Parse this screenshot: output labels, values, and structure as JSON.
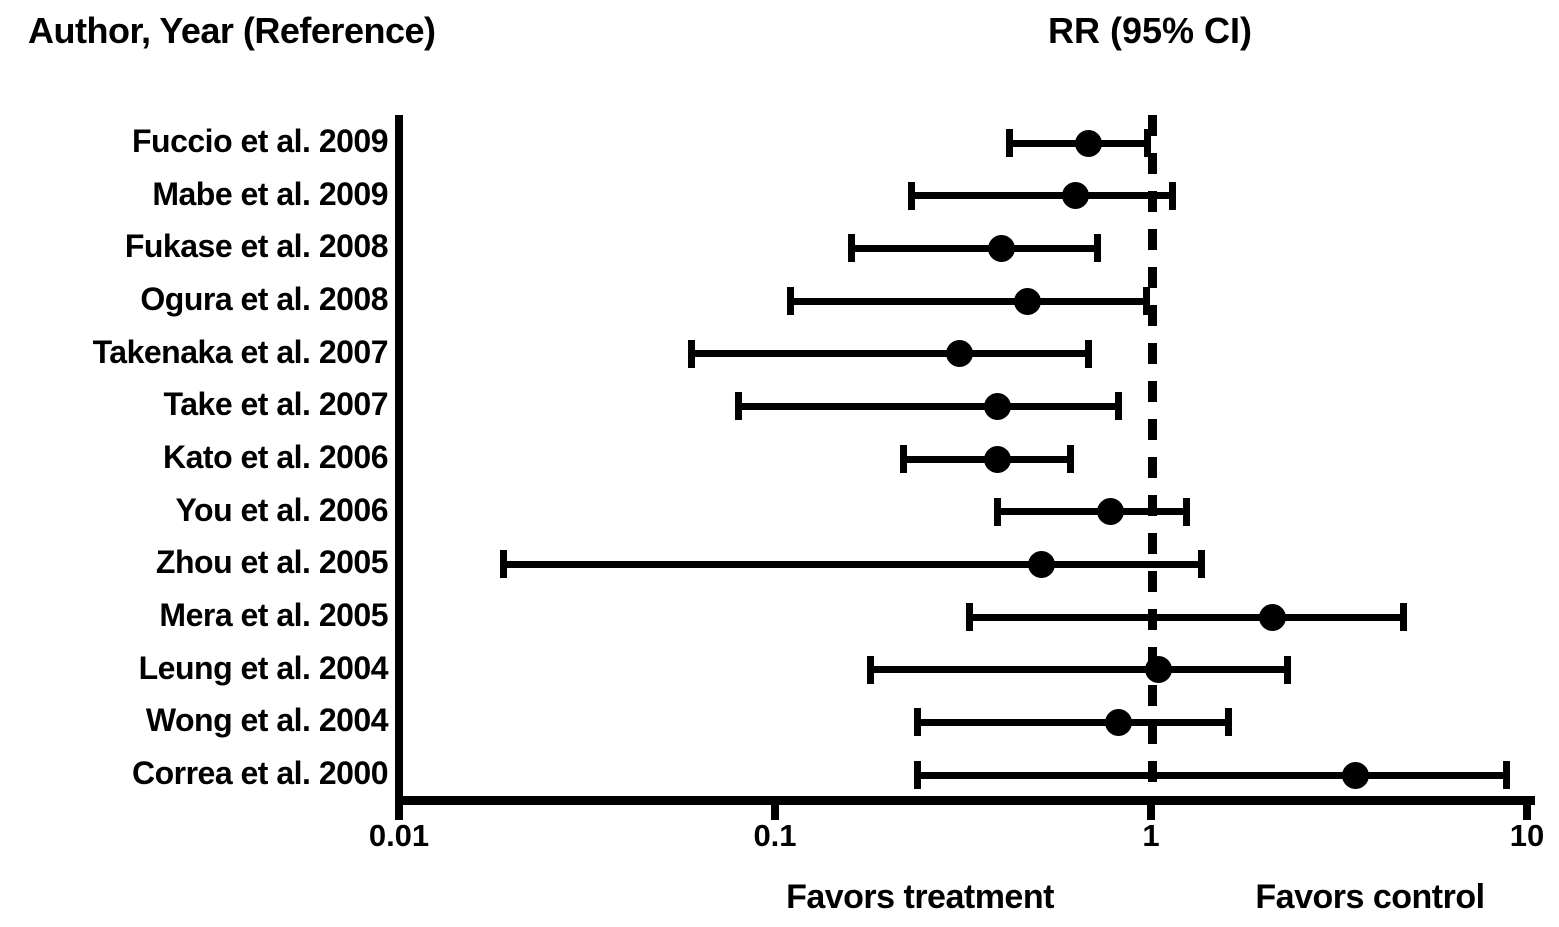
{
  "page": {
    "background": "#ffffff",
    "ink_color": "#000000"
  },
  "header": {
    "left_title": "Author, Year (Reference)",
    "right_title": "RR (95% CI)"
  },
  "chart_data": {
    "type": "forest",
    "title": "",
    "x_axis": {
      "scale": "log10",
      "min": 0.01,
      "max": 10,
      "ticks": [
        0.01,
        0.1,
        1,
        10
      ],
      "tick_labels": [
        "0.01",
        "0.1",
        "1",
        "10"
      ],
      "reference_line": 1
    },
    "studies": [
      {
        "label": "Fuccio et al. 2009",
        "rr": 0.68,
        "ci_low": 0.42,
        "ci_high": 0.98
      },
      {
        "label": "Mabe et al. 2009",
        "rr": 0.63,
        "ci_low": 0.23,
        "ci_high": 1.14
      },
      {
        "label": "Fukase et al. 2008",
        "rr": 0.4,
        "ci_low": 0.16,
        "ci_high": 0.72
      },
      {
        "label": "Ogura et al. 2008",
        "rr": 0.47,
        "ci_low": 0.11,
        "ci_high": 0.97
      },
      {
        "label": "Takenaka et al. 2007",
        "rr": 0.31,
        "ci_low": 0.06,
        "ci_high": 0.68
      },
      {
        "label": "Take et al. 2007",
        "rr": 0.39,
        "ci_low": 0.08,
        "ci_high": 0.82
      },
      {
        "label": "Kato et al. 2006",
        "rr": 0.39,
        "ci_low": 0.22,
        "ci_high": 0.61
      },
      {
        "label": "You et al. 2006",
        "rr": 0.78,
        "ci_low": 0.39,
        "ci_high": 1.24
      },
      {
        "label": "Zhou et al. 2005",
        "rr": 0.51,
        "ci_low": 0.019,
        "ci_high": 1.36
      },
      {
        "label": "Mera et al. 2005",
        "rr": 2.1,
        "ci_low": 0.33,
        "ci_high": 4.7
      },
      {
        "label": "Leung et al. 2004",
        "rr": 1.05,
        "ci_low": 0.18,
        "ci_high": 2.3
      },
      {
        "label": "Wong et al. 2004",
        "rr": 0.82,
        "ci_low": 0.24,
        "ci_high": 1.61
      },
      {
        "label": "Correa et al. 2000",
        "rr": 3.5,
        "ci_low": 0.24,
        "ci_high": 8.8
      }
    ],
    "footer_labels": {
      "left": "Favors treatment",
      "right": "Favors control"
    }
  }
}
